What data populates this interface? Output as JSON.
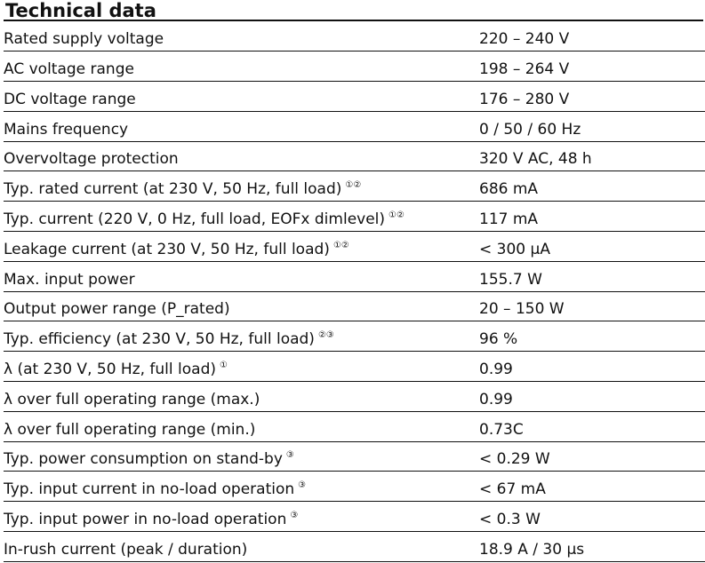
{
  "title": "Technical data",
  "rows": [
    {
      "label": "Rated supply voltage",
      "note": "",
      "value": "220 – 240 V"
    },
    {
      "label": "AC voltage range",
      "note": "",
      "value": "198 – 264 V"
    },
    {
      "label": "DC voltage range",
      "note": "",
      "value": "176 – 280 V"
    },
    {
      "label": "Mains frequency",
      "note": "",
      "value": "0 / 50 / 60 Hz"
    },
    {
      "label": "Overvoltage protection",
      "note": "",
      "value": "320 V AC, 48 h"
    },
    {
      "label": "Typ. rated current (at 230 V, 50 Hz, full load)",
      "note": "①②",
      "value": "686 mA"
    },
    {
      "label": "Typ. current (220 V, 0 Hz, full load, EOFx dimlevel)",
      "note": "①②",
      "value": "117 mA"
    },
    {
      "label": "Leakage current (at 230 V, 50 Hz, full load)",
      "note": "①②",
      "value": "< 300 µA"
    },
    {
      "label": "Max. input power",
      "note": "",
      "value": "155.7 W"
    },
    {
      "label": "Output power range (P_rated)",
      "note": "",
      "value": "20 – 150 W"
    },
    {
      "label": "Typ. efficiency (at 230 V, 50 Hz, full load)",
      "note": "②③",
      "value": "96 %"
    },
    {
      "label": "λ (at 230 V, 50 Hz, full load)",
      "note": "①",
      "value": "0.99"
    },
    {
      "label": "λ over full operating range (max.)",
      "note": "",
      "value": "0.99"
    },
    {
      "label": "λ over full operating range (min.)",
      "note": "",
      "value": "0.73C"
    },
    {
      "label": "Typ. power consumption on stand-by",
      "note": "③",
      "value": "< 0.29 W"
    },
    {
      "label": "Typ. input current in no-load operation",
      "note": "③",
      "value": "< 67 mA"
    },
    {
      "label": "Typ. input power in no-load operation",
      "note": "③",
      "value": "< 0.3 W"
    },
    {
      "label": "In-rush current (peak / duration)",
      "note": "",
      "value": "18.9 A / 30 µs"
    }
  ]
}
